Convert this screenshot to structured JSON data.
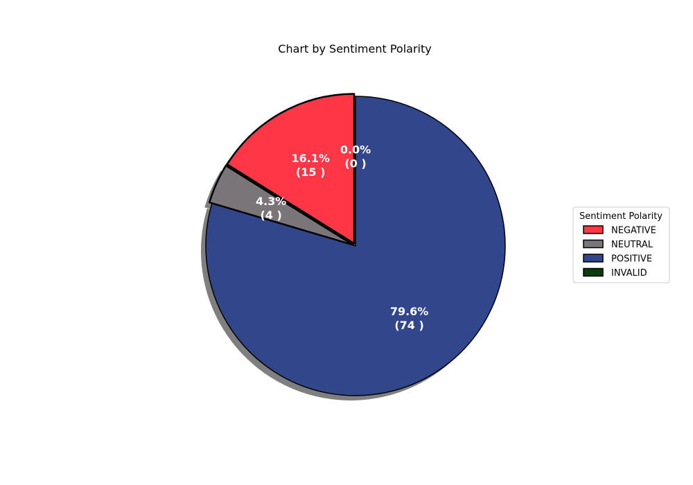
{
  "chart_data": {
    "type": "pie",
    "title": "Chart by Sentiment Polarity",
    "legend_title": "Sentiment Polarity",
    "legend_position": "right",
    "start_angle_deg": 90,
    "direction": "counterclockwise",
    "shadow": true,
    "slices": [
      {
        "label": "NEGATIVE",
        "value": 15,
        "percent": "16.1%",
        "count_label": "(15 )",
        "color": "#ff3645",
        "exploded": true
      },
      {
        "label": "NEUTRAL",
        "value": 4,
        "percent": "4.3%",
        "count_label": "(4 )",
        "color": "#7a7578",
        "exploded": true
      },
      {
        "label": "POSITIVE",
        "value": 74,
        "percent": "79.6%",
        "count_label": "(74 )",
        "color": "#32468c",
        "exploded": false
      },
      {
        "label": "INVALID",
        "value": 0,
        "percent": "0.0%",
        "count_label": "(0 )",
        "color": "#0b3d0b",
        "exploded": false
      }
    ]
  }
}
